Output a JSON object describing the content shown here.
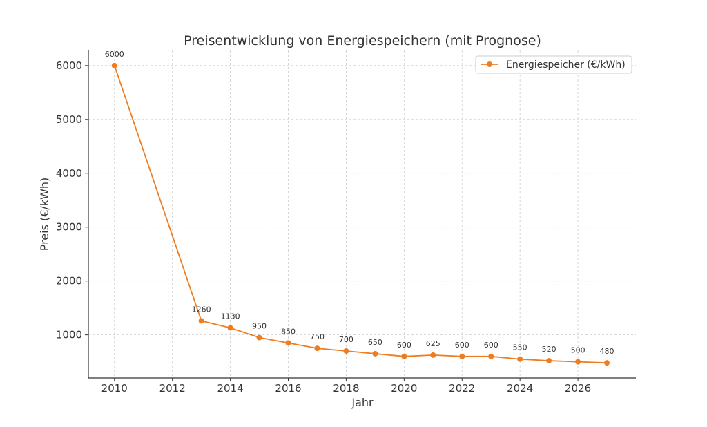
{
  "chart_data": {
    "type": "line",
    "title": "Preisentwicklung von Energiespeichern (mit Prognose)",
    "xlabel": "Jahr",
    "ylabel": "Preis (€/kWh)",
    "xlim": [
      2009.1,
      2028.0
    ],
    "ylim": [
      200,
      6280
    ],
    "xticks": [
      2010,
      2012,
      2014,
      2016,
      2018,
      2020,
      2022,
      2024,
      2026
    ],
    "yticks": [
      1000,
      2000,
      3000,
      4000,
      5000,
      6000
    ],
    "grid": true,
    "legend_position": "top-right",
    "series": [
      {
        "name": "Energiespeicher (€/kWh)",
        "color": "#ee7d22",
        "marker": "circle",
        "x": [
          2010,
          2013,
          2014,
          2015,
          2016,
          2017,
          2018,
          2019,
          2020,
          2021,
          2022,
          2023,
          2024,
          2025,
          2026,
          2027
        ],
        "values": [
          6000,
          1260,
          1130,
          950,
          850,
          750,
          700,
          650,
          600,
          625,
          600,
          600,
          550,
          520,
          500,
          480
        ],
        "labels": [
          "6000",
          "1260",
          "1130",
          "950",
          "850",
          "750",
          "700",
          "650",
          "600",
          "625",
          "600",
          "600",
          "550",
          "520",
          "500",
          "480"
        ]
      }
    ]
  }
}
